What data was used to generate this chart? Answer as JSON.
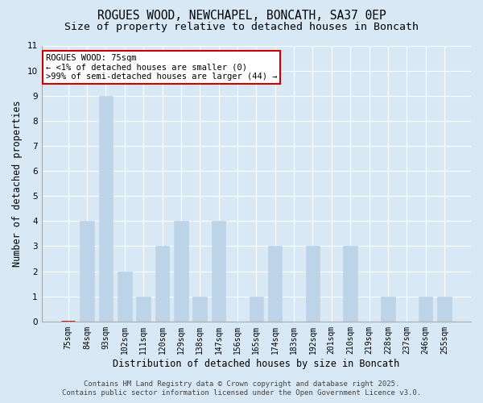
{
  "title": "ROGUES WOOD, NEWCHAPEL, BONCATH, SA37 0EP",
  "subtitle": "Size of property relative to detached houses in Boncath",
  "xlabel": "Distribution of detached houses by size in Boncath",
  "ylabel": "Number of detached properties",
  "categories": [
    "75sqm",
    "84sqm",
    "93sqm",
    "102sqm",
    "111sqm",
    "120sqm",
    "129sqm",
    "138sqm",
    "147sqm",
    "156sqm",
    "165sqm",
    "174sqm",
    "183sqm",
    "192sqm",
    "201sqm",
    "210sqm",
    "219sqm",
    "228sqm",
    "237sqm",
    "246sqm",
    "255sqm"
  ],
  "values": [
    0,
    4,
    9,
    2,
    1,
    3,
    4,
    1,
    4,
    0,
    1,
    3,
    0,
    3,
    0,
    3,
    0,
    1,
    0,
    1,
    1
  ],
  "highlight_index": 0,
  "bar_color": "#bdd4e8",
  "bar_edge_color": "#bdd4e8",
  "highlight_border_color": "#cc0000",
  "background_color": "#d8e8f4",
  "plot_bg_color": "#d8e8f4",
  "ylim_max": 11,
  "yticks": [
    0,
    1,
    2,
    3,
    4,
    5,
    6,
    7,
    8,
    9,
    10,
    11
  ],
  "annotation_title": "ROGUES WOOD: 75sqm",
  "annotation_line1": "← <1% of detached houses are smaller (0)",
  "annotation_line2": ">99% of semi-detached houses are larger (44) →",
  "footer_line1": "Contains HM Land Registry data © Crown copyright and database right 2025.",
  "footer_line2": "Contains public sector information licensed under the Open Government Licence v3.0.",
  "title_fontsize": 10.5,
  "subtitle_fontsize": 9.5,
  "axis_label_fontsize": 8.5,
  "tick_fontsize": 7,
  "annotation_fontsize": 7.5,
  "footer_fontsize": 6.5,
  "grid_color": "#ffffff",
  "spine_color": "#aaaaaa"
}
